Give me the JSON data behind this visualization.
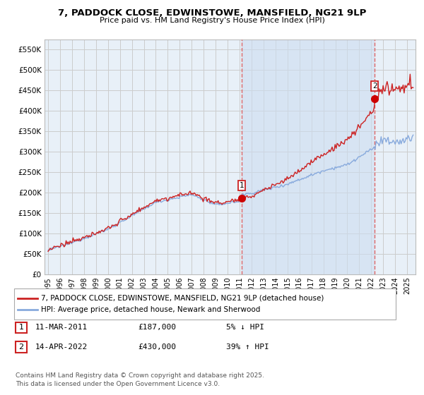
{
  "title_line1": "7, PADDOCK CLOSE, EDWINSTOWE, MANSFIELD, NG21 9LP",
  "title_line2": "Price paid vs. HM Land Registry's House Price Index (HPI)",
  "ytick_values": [
    0,
    50000,
    100000,
    150000,
    200000,
    250000,
    300000,
    350000,
    400000,
    450000,
    500000,
    550000
  ],
  "ylim": [
    0,
    575000
  ],
  "xlim_start": 1994.7,
  "xlim_end": 2025.7,
  "purchase1_x": 2011.19,
  "purchase1_y": 187000,
  "purchase2_x": 2022.29,
  "purchase2_y": 430000,
  "purchase_marker_color": "#cc0000",
  "purchase_marker_size": 7,
  "line_color_property": "#cc2222",
  "line_color_hpi": "#88aadd",
  "line_width": 1.0,
  "grid_color": "#cccccc",
  "background_color": "#ffffff",
  "plot_bg_color": "#e8f0f8",
  "vline_color": "#dd6666",
  "vline_style": "--",
  "shade_color": "#ccddf0",
  "legend_label_property": "7, PADDOCK CLOSE, EDWINSTOWE, MANSFIELD, NG21 9LP (detached house)",
  "legend_label_hpi": "HPI: Average price, detached house, Newark and Sherwood",
  "annotation_box1_date": "11-MAR-2011",
  "annotation_box1_price": "£187,000",
  "annotation_box1_pct": "5% ↓ HPI",
  "annotation_box2_date": "14-APR-2022",
  "annotation_box2_price": "£430,000",
  "annotation_box2_pct": "39% ↑ HPI",
  "footer_text": "Contains HM Land Registry data © Crown copyright and database right 2025.\nThis data is licensed under the Open Government Licence v3.0.",
  "xtick_years": [
    1995,
    1996,
    1997,
    1998,
    1999,
    2000,
    2001,
    2002,
    2003,
    2004,
    2005,
    2006,
    2007,
    2008,
    2009,
    2010,
    2011,
    2012,
    2013,
    2014,
    2015,
    2016,
    2017,
    2018,
    2019,
    2020,
    2021,
    2022,
    2023,
    2024,
    2025
  ]
}
